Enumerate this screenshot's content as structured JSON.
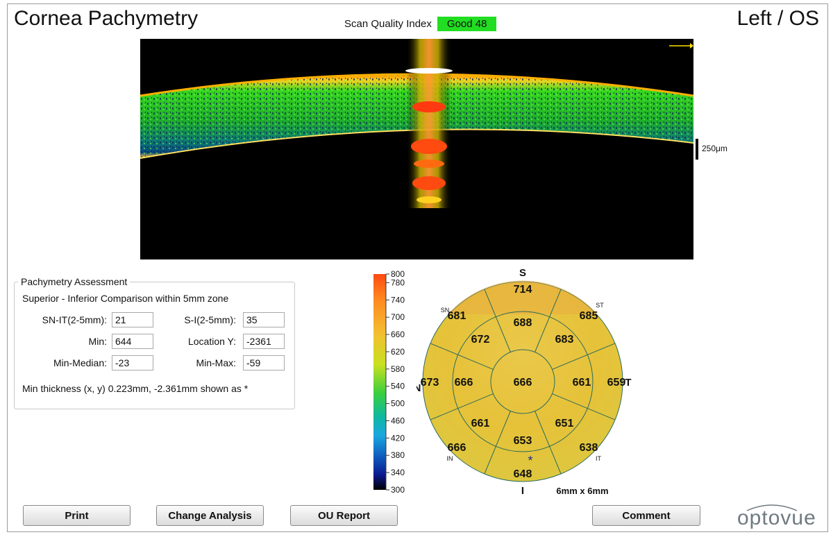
{
  "header": {
    "title": "Cornea Pachymetry",
    "eye": "Left / OS",
    "sqi_label": "Scan Quality Index",
    "sqi_value": "Good  48",
    "sqi_color": "#22dd22"
  },
  "bscan": {
    "scale_label": "250μm"
  },
  "assessment": {
    "legend": "Pachymetry Assessment",
    "subtitle": "Superior - Inferior Comparison within 5mm zone",
    "fields": {
      "sn_it_label": "SN-IT(2-5mm):",
      "sn_it_value": "21",
      "s_i_label": "S-I(2-5mm):",
      "s_i_value": "35",
      "min_label": "Min:",
      "min_value": "644",
      "loc_y_label": "Location Y:",
      "loc_y_value": "-2361",
      "min_median_label": "Min-Median:",
      "min_median_value": "-23",
      "min_max_label": "Min-Max:",
      "min_max_value": "-59"
    },
    "note": "Min thickness (x, y) 0.223mm, -2.361mm shown as *"
  },
  "colorbar": {
    "ticks": [
      "800",
      "780",
      "740",
      "700",
      "660",
      "620",
      "580",
      "540",
      "500",
      "460",
      "420",
      "380",
      "340",
      "300"
    ]
  },
  "map": {
    "labels": {
      "S": "S",
      "I": "I",
      "N": "N",
      "T": "T",
      "SN": "SN",
      "ST": "ST",
      "IN": "IN",
      "IT": "IT"
    },
    "center": "666",
    "inner": {
      "S": "688",
      "ST": "683",
      "T": "661",
      "IT": "651",
      "I": "653",
      "IN": "661",
      "N": "666",
      "SN": "672"
    },
    "outer": {
      "S": "714",
      "ST": "685",
      "T": "659",
      "IT": "638",
      "I": "648",
      "IN": "666",
      "N": "673",
      "SN": "681"
    },
    "size_label": "6mm x 6mm",
    "marker": "*",
    "fill_color": "#e9c13a"
  },
  "buttons": {
    "print": "Print",
    "change_analysis": "Change Analysis",
    "ou_report": "OU Report",
    "comment": "Comment"
  },
  "logo": "optovue"
}
